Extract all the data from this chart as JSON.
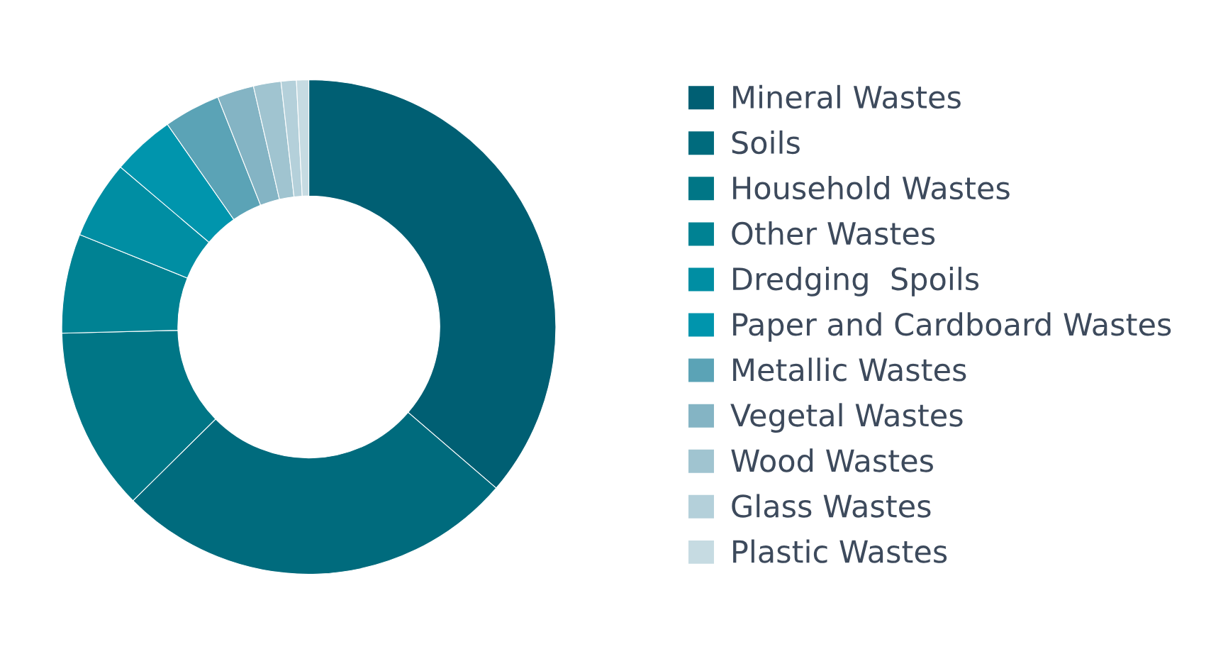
{
  "chart_data": {
    "type": "donut",
    "categories": [
      "Mineral Wastes",
      "Soils",
      "Household Wastes",
      "Other Wastes",
      "Dredging  Spoils",
      "Paper and Cardboard Wastes",
      "Metallic Wastes",
      "Vegetal Wastes",
      "Wood Wastes",
      "Glass Wastes",
      "Plastic Wastes"
    ],
    "values": [
      36.3,
      26.3,
      12.0,
      6.5,
      5.1,
      4.1,
      3.7,
      2.4,
      1.8,
      1.0,
      0.8
    ],
    "colors": [
      "#005f73",
      "#006b7d",
      "#007686",
      "#008293",
      "#008ea3",
      "#0095ad",
      "#5ba3b6",
      "#84b4c4",
      "#a0c4d0",
      "#b4d0da",
      "#c6dbe2"
    ],
    "legend": "right"
  }
}
